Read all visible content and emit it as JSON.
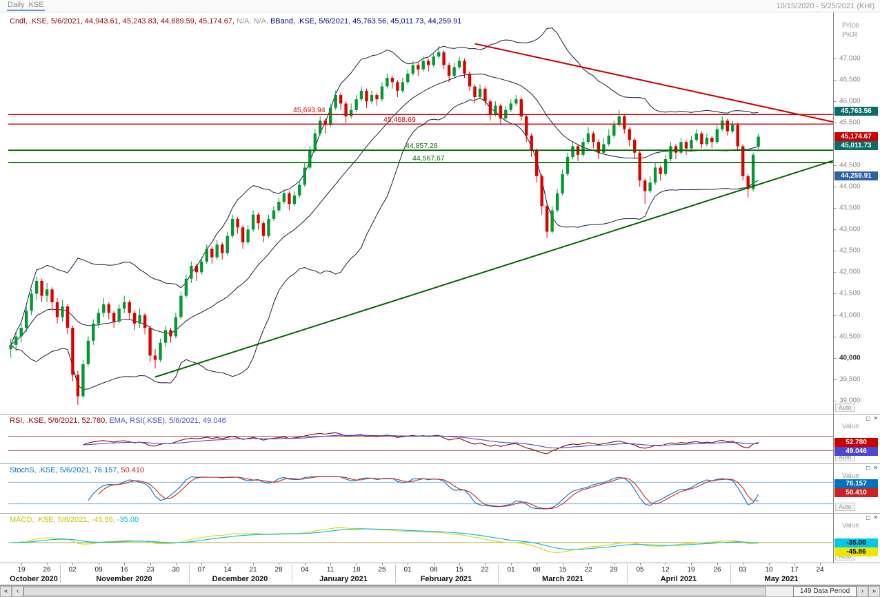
{
  "title_bar": {
    "title": "Daily .KSE",
    "range": "10/15/2020 - 5/25/2021 (KHI)"
  },
  "legend_main": {
    "candle": "Cndl, .KSE, 5/6/2021, 44,943.61, 45,243.83, 44,889.59, 45,174.67, ",
    "na": "N/A, N/A, ",
    "bband": "BBand, .KSE, 5/6/2021, 45,763.56, 45,011.73, 44,259.91"
  },
  "axis": {
    "unit_line1": "Price",
    "unit_line2": "PKR",
    "auto": "Auto",
    "price_ticks": [
      {
        "v": 47000,
        "label": "47,000"
      },
      {
        "v": 46500,
        "label": "46,500"
      },
      {
        "v": 46000,
        "label": "46,000"
      },
      {
        "v": 45500,
        "label": "45,500"
      },
      {
        "v": 45000,
        "label": "45,000"
      },
      {
        "v": 44500,
        "label": "44,500"
      },
      {
        "v": 44000,
        "label": "44,000"
      },
      {
        "v": 43500,
        "label": "43,500"
      },
      {
        "v": 43000,
        "label": "43,000"
      },
      {
        "v": 42500,
        "label": "42,500"
      },
      {
        "v": 42000,
        "label": "42,000"
      },
      {
        "v": 41500,
        "label": "41,500"
      },
      {
        "v": 41000,
        "label": "41,000"
      },
      {
        "v": 40500,
        "label": "40,500"
      },
      {
        "v": 40000,
        "label": "40,000",
        "bold": true
      },
      {
        "v": 39500,
        "label": "39,500"
      },
      {
        "v": 39000,
        "label": "39,000"
      }
    ],
    "badges": [
      {
        "v": 45763.56,
        "label": "45,763.56",
        "bg": "#0B6B6B",
        "fg": "#FFFFFF"
      },
      {
        "v": 45174.67,
        "label": "45,174.67",
        "bg": "#CC0000",
        "fg": "#FFFFFF"
      },
      {
        "v": 45011.73,
        "label": "45,011.73",
        "bg": "#0B6B6B",
        "fg": "#FFFFFF"
      },
      {
        "v": 44259.91,
        "label": "44,259.91",
        "bg": "#2F5FA8",
        "fg": "#FFFFFF"
      }
    ]
  },
  "panels": {
    "rsi": {
      "legend0": "RSI, .KSE, 5/6/2021, 52.780, ",
      "legend1": "EMA, RSI(.KSE), 5/6/2021, 49.046",
      "value_label": "Value",
      "auto": "Auto",
      "badges": [
        {
          "v": 52.78,
          "label": "52.780",
          "bg": "#CC0000",
          "fg": "#FFFFFF"
        },
        {
          "v": 49.046,
          "label": "49.046",
          "bg": "#4A4AD0",
          "fg": "#FFFFFF"
        }
      ],
      "ref_lines": [
        70,
        30
      ],
      "ref_color": "#A05050",
      "line_colors": [
        "#8B0000",
        "#4A4AD0"
      ],
      "domain": [
        0,
        100
      ]
    },
    "stoch": {
      "legend0": "StochS, .KSE, 5/6/2021, 76.157, ",
      "legend1": "50.410",
      "value_label": "Value",
      "auto": "Auto",
      "badges": [
        {
          "v": 76.157,
          "label": "76.157",
          "bg": "#0070C0",
          "fg": "#FFFFFF"
        },
        {
          "v": 50.41,
          "label": "50.410",
          "bg": "#CC2222",
          "fg": "#FFFFFF"
        }
      ],
      "ref_lines": [
        80,
        20
      ],
      "ref_color": "#7FB2D9",
      "line_colors": [
        "#0070C0",
        "#CC2222"
      ],
      "domain": [
        0,
        100
      ]
    },
    "macd": {
      "legend0": "MACD, .KSE, 5/6/2021, -45.86, ",
      "legend1": "-35.00",
      "value_label": "Value",
      "auto": "Auto",
      "badges": [
        {
          "v": -35.0,
          "label": "-35.00",
          "bg": "#00C8E8",
          "fg": "#000000"
        },
        {
          "v": -45.86,
          "label": "-45.86",
          "bg": "#E8E800",
          "fg": "#000000"
        }
      ],
      "ref_lines": [],
      "ref_color": "#A8A830",
      "line_colors": [
        "#D8D800",
        "#00B8D8"
      ],
      "zero_color": "#A8A830"
    }
  },
  "icons": {
    "restore": "◻",
    "close": "✕"
  },
  "scrollbar": {
    "far_left": "«",
    "left": "‹",
    "right": "›",
    "far_right": "»",
    "label": "149 Data Period"
  },
  "chart_data": {
    "type": "candlestick",
    "symbol": ".KSE",
    "interval": "Daily",
    "title": "Daily .KSE 10/15/2020 - 5/25/2021 (KHI)",
    "ylabel": "Price PKR",
    "price_axis_range": [
      38800,
      47600
    ],
    "total_slots": 160,
    "colors": {
      "up": "#009933",
      "down": "#DD0000",
      "bband": "#1A1A3A"
    },
    "indicator_values": {
      "candle_ohlc": [
        44943.61,
        45243.83,
        44889.59,
        45174.67
      ],
      "bband_upper": 45763.56,
      "bband_mid": 45011.73,
      "bband_lower": 44259.91,
      "rsi": 52.78,
      "rsi_ema": 49.046,
      "stoch_k": 76.157,
      "stoch_d": 50.41,
      "macd": -45.86,
      "macd_signal": -35.0
    },
    "horizontal_lines": [
      {
        "price": 45693.94,
        "label": "45,693.94",
        "color": "#CC0000",
        "width": 1.4,
        "label_x": 0.345
      },
      {
        "price": 45468.69,
        "label": "45,468.69",
        "color": "#CC0000",
        "width": 1.4,
        "label_x": 0.455
      },
      {
        "price": 44857.28,
        "label": "44,857.28",
        "color": "#006600",
        "width": 1.8,
        "label_x": 0.482
      },
      {
        "price": 44567.67,
        "label": "44,567.67",
        "color": "#006600",
        "width": 1.8,
        "label_x": 0.49
      }
    ],
    "trendlines": {
      "resistance": {
        "color": "#CC0000",
        "from": [
          90,
          47350
        ],
        "to": [
          161,
          45480
        ]
      },
      "support": {
        "color": "#006600",
        "from": [
          28,
          39550
        ],
        "to": [
          161,
          44670
        ]
      }
    },
    "x_ticks": [
      "19",
      "26",
      "02",
      "09",
      "16",
      "23",
      "30",
      "07",
      "14",
      "21",
      "28",
      "04",
      "11",
      "18",
      "25",
      "01",
      "08",
      "15",
      "22",
      "01",
      "08",
      "15",
      "22",
      "29",
      "05",
      "12",
      "19",
      "26",
      "03",
      "10",
      "17",
      "24"
    ],
    "months": [
      {
        "label": "October 2020",
        "ticks": 2
      },
      {
        "label": "November 2020",
        "ticks": 5
      },
      {
        "label": "December 2020",
        "ticks": 4
      },
      {
        "label": "January 2021",
        "ticks": 4
      },
      {
        "label": "February 2021",
        "ticks": 4
      },
      {
        "label": "March 2021",
        "ticks": 5
      },
      {
        "label": "April 2021",
        "ticks": 4
      },
      {
        "label": "May 2021",
        "ticks": 4
      }
    ],
    "candles": [
      [
        40200,
        40450,
        40000,
        40300
      ],
      [
        40300,
        40600,
        40150,
        40500
      ],
      [
        40500,
        40800,
        40350,
        40700
      ],
      [
        40700,
        41200,
        40600,
        41100
      ],
      [
        41100,
        41600,
        41000,
        41500
      ],
      [
        41500,
        41900,
        41350,
        41800
      ],
      [
        41800,
        41850,
        41300,
        41450
      ],
      [
        41450,
        41750,
        41300,
        41600
      ],
      [
        41600,
        41650,
        41100,
        41300
      ],
      [
        41300,
        41400,
        40800,
        40950
      ],
      [
        40950,
        41350,
        40850,
        41200
      ],
      [
        41200,
        41250,
        40550,
        40700
      ],
      [
        40700,
        40750,
        39450,
        39600
      ],
      [
        39600,
        39700,
        38900,
        39100
      ],
      [
        39100,
        39950,
        39050,
        39850
      ],
      [
        39850,
        40500,
        39800,
        40400
      ],
      [
        40400,
        40900,
        40300,
        40800
      ],
      [
        40800,
        41150,
        40700,
        41050
      ],
      [
        41050,
        41400,
        40950,
        41250
      ],
      [
        41250,
        41300,
        40900,
        41050
      ],
      [
        41050,
        41100,
        40700,
        40850
      ],
      [
        40850,
        41250,
        40800,
        41150
      ],
      [
        41150,
        41450,
        41050,
        41300
      ],
      [
        41300,
        41350,
        40900,
        41050
      ],
      [
        41050,
        41100,
        40650,
        40800
      ],
      [
        40800,
        41150,
        40700,
        41000
      ],
      [
        41000,
        41050,
        40550,
        40700
      ],
      [
        40700,
        40750,
        39900,
        40050
      ],
      [
        40050,
        40200,
        39750,
        39950
      ],
      [
        39950,
        40450,
        39900,
        40350
      ],
      [
        40350,
        40750,
        40250,
        40650
      ],
      [
        40650,
        40700,
        40350,
        40500
      ],
      [
        40500,
        41050,
        40450,
        40950
      ],
      [
        40950,
        41550,
        40900,
        41450
      ],
      [
        41450,
        41950,
        41400,
        41850
      ],
      [
        41850,
        42250,
        41750,
        42150
      ],
      [
        42150,
        42200,
        41800,
        42000
      ],
      [
        42000,
        42350,
        41950,
        42250
      ],
      [
        42250,
        42650,
        42200,
        42550
      ],
      [
        42550,
        42600,
        42200,
        42350
      ],
      [
        42350,
        42750,
        42300,
        42650
      ],
      [
        42650,
        42700,
        42300,
        42450
      ],
      [
        42450,
        42950,
        42400,
        42850
      ],
      [
        42850,
        43350,
        42800,
        43250
      ],
      [
        43250,
        43300,
        42900,
        43050
      ],
      [
        43050,
        43100,
        42550,
        42700
      ],
      [
        42700,
        43100,
        42650,
        43000
      ],
      [
        43000,
        43450,
        42950,
        43350
      ],
      [
        43350,
        43400,
        43000,
        43150
      ],
      [
        43150,
        43200,
        42700,
        42850
      ],
      [
        42850,
        43350,
        42800,
        43250
      ],
      [
        43250,
        43550,
        43200,
        43450
      ],
      [
        43450,
        43750,
        43400,
        43650
      ],
      [
        43650,
        43950,
        43600,
        43850
      ],
      [
        43850,
        43900,
        43450,
        43600
      ],
      [
        43600,
        43900,
        43550,
        43800
      ],
      [
        43800,
        44150,
        43750,
        44050
      ],
      [
        44050,
        44550,
        44000,
        44450
      ],
      [
        44450,
        44950,
        44400,
        44850
      ],
      [
        44850,
        45350,
        44800,
        45250
      ],
      [
        45250,
        45650,
        45200,
        45550
      ],
      [
        45550,
        45600,
        45250,
        45450
      ],
      [
        45450,
        45950,
        45400,
        45850
      ],
      [
        45850,
        46250,
        45800,
        46150
      ],
      [
        46150,
        46200,
        45800,
        45950
      ],
      [
        45950,
        46000,
        45500,
        45650
      ],
      [
        45650,
        45950,
        45600,
        45800
      ],
      [
        45800,
        46150,
        45750,
        46050
      ],
      [
        46050,
        46350,
        46000,
        46250
      ],
      [
        46250,
        46300,
        45850,
        46000
      ],
      [
        46000,
        46250,
        45950,
        46150
      ],
      [
        46150,
        46200,
        45900,
        46050
      ],
      [
        46050,
        46450,
        46000,
        46350
      ],
      [
        46350,
        46650,
        46300,
        46550
      ],
      [
        46550,
        46600,
        46300,
        46450
      ],
      [
        46450,
        46500,
        46100,
        46250
      ],
      [
        46250,
        46550,
        46200,
        46450
      ],
      [
        46450,
        46750,
        46400,
        46650
      ],
      [
        46650,
        46950,
        46600,
        46850
      ],
      [
        46850,
        46900,
        46600,
        46750
      ],
      [
        46750,
        47050,
        46700,
        46950
      ],
      [
        46950,
        47000,
        46700,
        46850
      ],
      [
        46850,
        47150,
        46800,
        47050
      ],
      [
        47050,
        47300,
        47000,
        47150
      ],
      [
        47150,
        47200,
        46750,
        46850
      ],
      [
        46850,
        46900,
        46450,
        46600
      ],
      [
        46600,
        46900,
        46550,
        46800
      ],
      [
        46800,
        47050,
        46750,
        46950
      ],
      [
        46950,
        47000,
        46550,
        46650
      ],
      [
        46650,
        46700,
        46250,
        46350
      ],
      [
        46350,
        46400,
        45950,
        46100
      ],
      [
        46100,
        46400,
        46050,
        46300
      ],
      [
        46300,
        46350,
        45900,
        46000
      ],
      [
        46000,
        46050,
        45550,
        45700
      ],
      [
        45700,
        46000,
        45650,
        45900
      ],
      [
        45900,
        45950,
        45450,
        45600
      ],
      [
        45600,
        45900,
        45550,
        45800
      ],
      [
        45800,
        46050,
        45750,
        45950
      ],
      [
        45950,
        46150,
        45900,
        46050
      ],
      [
        46050,
        46100,
        45550,
        45650
      ],
      [
        45650,
        45700,
        45050,
        45200
      ],
      [
        45200,
        45250,
        44700,
        44850
      ],
      [
        44850,
        44900,
        44100,
        44250
      ],
      [
        44250,
        44300,
        43350,
        43550
      ],
      [
        43550,
        43600,
        42800,
        42950
      ],
      [
        42950,
        43550,
        42900,
        43450
      ],
      [
        43450,
        43950,
        43400,
        43850
      ],
      [
        43850,
        44400,
        43800,
        44300
      ],
      [
        44300,
        44800,
        44250,
        44700
      ],
      [
        44700,
        45050,
        44650,
        44950
      ],
      [
        44950,
        45000,
        44600,
        44750
      ],
      [
        44750,
        45150,
        44700,
        45050
      ],
      [
        45050,
        45400,
        45000,
        45250
      ],
      [
        45250,
        45300,
        44900,
        45050
      ],
      [
        45050,
        45100,
        44650,
        44800
      ],
      [
        44800,
        45150,
        44750,
        45000
      ],
      [
        45000,
        45350,
        44950,
        45200
      ],
      [
        45200,
        45550,
        45150,
        45450
      ],
      [
        45450,
        45800,
        45400,
        45650
      ],
      [
        45650,
        45700,
        45250,
        45350
      ],
      [
        45350,
        45400,
        44950,
        45100
      ],
      [
        45100,
        45150,
        44650,
        44800
      ],
      [
        44800,
        44850,
        44000,
        44150
      ],
      [
        44150,
        44200,
        43600,
        43900
      ],
      [
        43900,
        44250,
        43850,
        44100
      ],
      [
        44100,
        44550,
        44050,
        44450
      ],
      [
        44450,
        44500,
        44150,
        44300
      ],
      [
        44300,
        44750,
        44250,
        44650
      ],
      [
        44650,
        45050,
        44600,
        44950
      ],
      [
        44950,
        45000,
        44650,
        44800
      ],
      [
        44800,
        45150,
        44750,
        45050
      ],
      [
        45050,
        45100,
        44750,
        44900
      ],
      [
        44900,
        45200,
        44850,
        45100
      ],
      [
        45100,
        45350,
        45050,
        45250
      ],
      [
        45250,
        45300,
        44900,
        45000
      ],
      [
        45000,
        45250,
        44950,
        45150
      ],
      [
        45150,
        45200,
        44900,
        45050
      ],
      [
        45050,
        45450,
        45000,
        45350
      ],
      [
        45350,
        45650,
        45300,
        45550
      ],
      [
        45550,
        45600,
        45200,
        45300
      ],
      [
        45300,
        45550,
        45250,
        45450
      ],
      [
        45450,
        45500,
        44850,
        44950
      ],
      [
        44950,
        45000,
        44150,
        44250
      ],
      [
        44250,
        44300,
        43750,
        43950
      ],
      [
        43950,
        44800,
        43900,
        44750
      ],
      [
        44943.61,
        45243.83,
        44889.59,
        45174.67
      ]
    ]
  }
}
